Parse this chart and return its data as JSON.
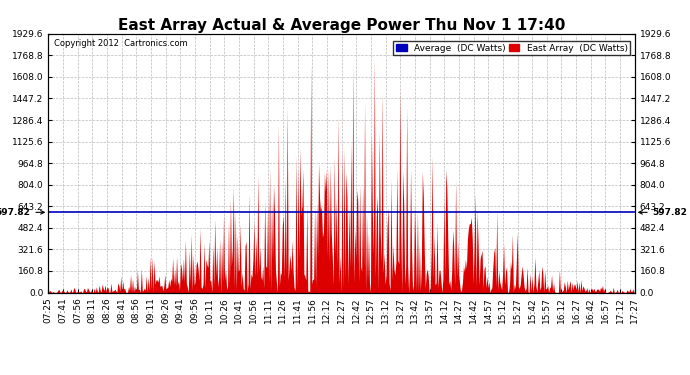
{
  "title": "East Array Actual & Average Power Thu Nov 1 17:40",
  "copyright": "Copyright 2012  Cartronics.com",
  "hline_value": 597.82,
  "hline_label": "597.82",
  "ymin": 0.0,
  "ymax": 1929.6,
  "yticks": [
    0.0,
    160.8,
    321.6,
    482.4,
    643.2,
    804.0,
    964.8,
    1125.6,
    1286.4,
    1447.2,
    1608.0,
    1768.8,
    1929.6
  ],
  "legend_avg_label": "Average  (DC Watts)",
  "legend_east_label": "East Array  (DC Watts)",
  "avg_color": "#0000bb",
  "east_color": "#dd0000",
  "bg_color": "#ffffff",
  "grid_color": "#aaaaaa",
  "title_fontsize": 11,
  "tick_fontsize": 6.5,
  "time_labels": [
    "07:25",
    "07:41",
    "07:56",
    "08:11",
    "08:26",
    "08:41",
    "08:56",
    "09:11",
    "09:26",
    "09:41",
    "09:56",
    "10:11",
    "10:26",
    "10:41",
    "10:56",
    "11:11",
    "11:26",
    "11:41",
    "11:56",
    "12:12",
    "12:27",
    "12:42",
    "12:57",
    "13:12",
    "13:27",
    "13:42",
    "13:57",
    "14:12",
    "14:27",
    "14:42",
    "14:57",
    "15:12",
    "15:27",
    "15:42",
    "15:57",
    "16:12",
    "16:27",
    "16:42",
    "16:57",
    "17:12",
    "17:27"
  ]
}
